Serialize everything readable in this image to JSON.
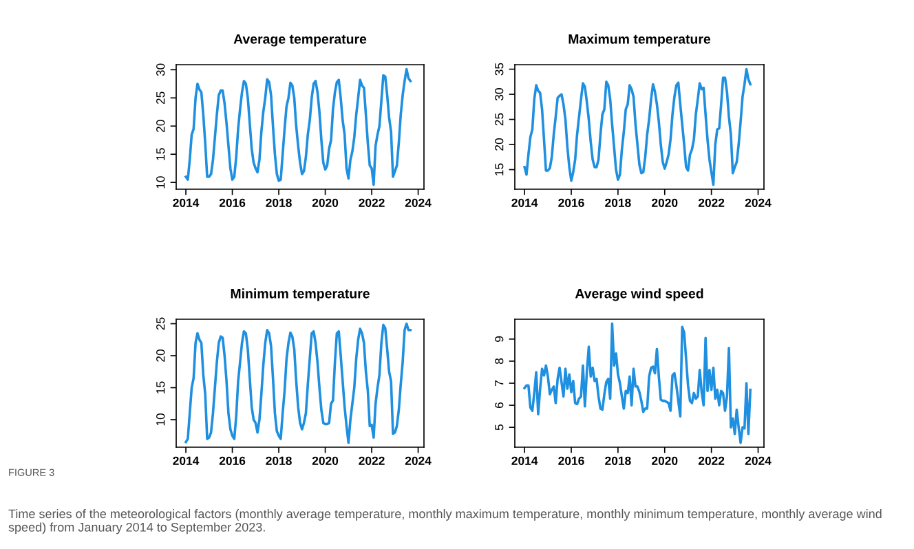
{
  "chart_data": [
    {
      "type": "line",
      "title": "Average temperature",
      "xlim": [
        "2013-08",
        "2024-04"
      ],
      "xticks": [
        "2014",
        "2016",
        "2018",
        "2020",
        "2022",
        "2024"
      ],
      "ylim": [
        8.8,
        30.9
      ],
      "yticks": [
        10,
        15,
        20,
        25,
        30
      ],
      "grid": false,
      "legend": false,
      "marker": "none",
      "line_style": "solid",
      "x": [
        "2014-01",
        "2014-02",
        "2014-03",
        "2014-04",
        "2014-05",
        "2014-06",
        "2014-07",
        "2014-08",
        "2014-09",
        "2014-10",
        "2014-11",
        "2014-12",
        "2015-01",
        "2015-02",
        "2015-03",
        "2015-04",
        "2015-05",
        "2015-06",
        "2015-07",
        "2015-08",
        "2015-09",
        "2015-10",
        "2015-11",
        "2015-12",
        "2016-01",
        "2016-02",
        "2016-03",
        "2016-04",
        "2016-05",
        "2016-06",
        "2016-07",
        "2016-08",
        "2016-09",
        "2016-10",
        "2016-11",
        "2016-12",
        "2017-01",
        "2017-02",
        "2017-03",
        "2017-04",
        "2017-05",
        "2017-06",
        "2017-07",
        "2017-08",
        "2017-09",
        "2017-10",
        "2017-11",
        "2017-12",
        "2018-01",
        "2018-02",
        "2018-03",
        "2018-04",
        "2018-05",
        "2018-06",
        "2018-07",
        "2018-08",
        "2018-09",
        "2018-10",
        "2018-11",
        "2018-12",
        "2019-01",
        "2019-02",
        "2019-03",
        "2019-04",
        "2019-05",
        "2019-06",
        "2019-07",
        "2019-08",
        "2019-09",
        "2019-10",
        "2019-11",
        "2019-12",
        "2020-01",
        "2020-02",
        "2020-03",
        "2020-04",
        "2020-05",
        "2020-06",
        "2020-07",
        "2020-08",
        "2020-09",
        "2020-10",
        "2020-11",
        "2020-12",
        "2021-01",
        "2021-02",
        "2021-03",
        "2021-04",
        "2021-05",
        "2021-06",
        "2021-07",
        "2021-08",
        "2021-09",
        "2021-10",
        "2021-11",
        "2021-12",
        "2022-01",
        "2022-02",
        "2022-03",
        "2022-04",
        "2022-05",
        "2022-06",
        "2022-07",
        "2022-08",
        "2022-09",
        "2022-10",
        "2022-11",
        "2022-12",
        "2023-01",
        "2023-02",
        "2023-03",
        "2023-04",
        "2023-05",
        "2023-06",
        "2023-07",
        "2023-08",
        "2023-09"
      ],
      "series": [
        {
          "color": "#1f8fe0",
          "values": [
            11,
            10.5,
            14,
            18.5,
            19.5,
            25,
            27.5,
            26.5,
            26,
            22,
            17,
            11,
            11,
            11.5,
            14,
            18,
            22,
            25.5,
            26.3,
            26.3,
            24,
            20.5,
            16.5,
            12.5,
            10.5,
            11,
            14.5,
            19.5,
            23,
            26,
            28,
            27.5,
            25,
            20.5,
            16,
            13.5,
            12.5,
            11.8,
            14,
            19,
            22.5,
            25,
            28.3,
            27.8,
            25.5,
            20,
            15,
            11.5,
            10.3,
            10.5,
            15,
            19.5,
            23.5,
            25,
            27.7,
            27.2,
            25,
            20,
            16.5,
            13.5,
            11.5,
            12,
            14.5,
            18.5,
            21,
            25,
            27.5,
            28,
            26,
            22.5,
            17.5,
            13.5,
            12.3,
            13,
            16,
            17.5,
            23,
            26,
            27.8,
            28.2,
            25,
            21,
            18.5,
            12.5,
            10.7,
            14,
            15.5,
            18,
            22,
            25,
            28.2,
            27.2,
            26.8,
            22,
            17,
            13,
            12.5,
            9.6,
            16.5,
            18.5,
            20,
            24.5,
            29,
            28.8,
            25.5,
            21.5,
            19,
            11,
            12,
            13,
            17,
            22,
            25.5,
            28,
            30.1,
            28.5,
            28
          ]
        }
      ]
    },
    {
      "type": "line",
      "title": "Maximum temperature",
      "xlim": [
        "2013-08",
        "2024-04"
      ],
      "xticks": [
        "2014",
        "2016",
        "2018",
        "2020",
        "2022",
        "2024"
      ],
      "ylim": [
        11.1,
        35.9
      ],
      "yticks": [
        15,
        20,
        25,
        30,
        35
      ],
      "grid": false,
      "legend": false,
      "marker": "none",
      "line_style": "solid",
      "x": [
        "2014-01",
        "2014-02",
        "2014-03",
        "2014-04",
        "2014-05",
        "2014-06",
        "2014-07",
        "2014-08",
        "2014-09",
        "2014-10",
        "2014-11",
        "2014-12",
        "2015-01",
        "2015-02",
        "2015-03",
        "2015-04",
        "2015-05",
        "2015-06",
        "2015-07",
        "2015-08",
        "2015-09",
        "2015-10",
        "2015-11",
        "2015-12",
        "2016-01",
        "2016-02",
        "2016-03",
        "2016-04",
        "2016-05",
        "2016-06",
        "2016-07",
        "2016-08",
        "2016-09",
        "2016-10",
        "2016-11",
        "2016-12",
        "2017-01",
        "2017-02",
        "2017-03",
        "2017-04",
        "2017-05",
        "2017-06",
        "2017-07",
        "2017-08",
        "2017-09",
        "2017-10",
        "2017-11",
        "2017-12",
        "2018-01",
        "2018-02",
        "2018-03",
        "2018-04",
        "2018-05",
        "2018-06",
        "2018-07",
        "2018-08",
        "2018-09",
        "2018-10",
        "2018-11",
        "2018-12",
        "2019-01",
        "2019-02",
        "2019-03",
        "2019-04",
        "2019-05",
        "2019-06",
        "2019-07",
        "2019-08",
        "2019-09",
        "2019-10",
        "2019-11",
        "2019-12",
        "2020-01",
        "2020-02",
        "2020-03",
        "2020-04",
        "2020-05",
        "2020-06",
        "2020-07",
        "2020-08",
        "2020-09",
        "2020-10",
        "2020-11",
        "2020-12",
        "2021-01",
        "2021-02",
        "2021-03",
        "2021-04",
        "2021-05",
        "2021-06",
        "2021-07",
        "2021-08",
        "2021-09",
        "2021-10",
        "2021-11",
        "2021-12",
        "2022-01",
        "2022-02",
        "2022-03",
        "2022-04",
        "2022-05",
        "2022-06",
        "2022-07",
        "2022-08",
        "2022-09",
        "2022-10",
        "2022-11",
        "2022-12",
        "2023-01",
        "2023-02",
        "2023-03",
        "2023-04",
        "2023-05",
        "2023-06",
        "2023-07",
        "2023-08",
        "2023-09"
      ],
      "series": [
        {
          "color": "#1f8fe0",
          "values": [
            15.5,
            14,
            18,
            21.5,
            23,
            29,
            31.8,
            30.7,
            30.3,
            27,
            21,
            14.8,
            14.8,
            15.3,
            17.5,
            22,
            25.5,
            29.3,
            29.7,
            30,
            28,
            25,
            19.5,
            15.5,
            12.8,
            14.5,
            17,
            22,
            25.5,
            29,
            32.2,
            31.5,
            28.5,
            25,
            20.5,
            17,
            15.5,
            15.5,
            17,
            22,
            26,
            27,
            32.5,
            31.8,
            29,
            24,
            19.5,
            15,
            13,
            14,
            19,
            22.5,
            27,
            28,
            31.8,
            31,
            29.5,
            24,
            20,
            16,
            14.3,
            14.5,
            17.5,
            22,
            25,
            29,
            32,
            30.5,
            28,
            24.5,
            20,
            16.5,
            15.2,
            16.5,
            18,
            21,
            26,
            29.5,
            31.8,
            32.3,
            28,
            24,
            20,
            15.5,
            14.8,
            18,
            19,
            21,
            26,
            29,
            32.2,
            31,
            31.3,
            26,
            21,
            17,
            14.5,
            12,
            20,
            23,
            23.2,
            28,
            33.3,
            33.3,
            30.5,
            25.5,
            22,
            14.3,
            15.5,
            16.5,
            20,
            24.5,
            29.5,
            32,
            35,
            33,
            32
          ]
        }
      ]
    },
    {
      "type": "line",
      "title": "Minimum temperature",
      "xlim": [
        "2013-08",
        "2024-04"
      ],
      "xticks": [
        "2014",
        "2016",
        "2018",
        "2020",
        "2022",
        "2024"
      ],
      "ylim": [
        5.7,
        25.7
      ],
      "yticks": [
        10,
        15,
        20,
        25
      ],
      "grid": false,
      "legend": false,
      "marker": "none",
      "line_style": "solid",
      "x": [
        "2014-01",
        "2014-02",
        "2014-03",
        "2014-04",
        "2014-05",
        "2014-06",
        "2014-07",
        "2014-08",
        "2014-09",
        "2014-10",
        "2014-11",
        "2014-12",
        "2015-01",
        "2015-02",
        "2015-03",
        "2015-04",
        "2015-05",
        "2015-06",
        "2015-07",
        "2015-08",
        "2015-09",
        "2015-10",
        "2015-11",
        "2015-12",
        "2016-01",
        "2016-02",
        "2016-03",
        "2016-04",
        "2016-05",
        "2016-06",
        "2016-07",
        "2016-08",
        "2016-09",
        "2016-10",
        "2016-11",
        "2016-12",
        "2017-01",
        "2017-02",
        "2017-03",
        "2017-04",
        "2017-05",
        "2017-06",
        "2017-07",
        "2017-08",
        "2017-09",
        "2017-10",
        "2017-11",
        "2017-12",
        "2018-01",
        "2018-02",
        "2018-03",
        "2018-04",
        "2018-05",
        "2018-06",
        "2018-07",
        "2018-08",
        "2018-09",
        "2018-10",
        "2018-11",
        "2018-12",
        "2019-01",
        "2019-02",
        "2019-03",
        "2019-04",
        "2019-05",
        "2019-06",
        "2019-07",
        "2019-08",
        "2019-09",
        "2019-10",
        "2019-11",
        "2019-12",
        "2020-01",
        "2020-02",
        "2020-03",
        "2020-04",
        "2020-05",
        "2020-06",
        "2020-07",
        "2020-08",
        "2020-09",
        "2020-10",
        "2020-11",
        "2020-12",
        "2021-01",
        "2021-02",
        "2021-03",
        "2021-04",
        "2021-05",
        "2021-06",
        "2021-07",
        "2021-08",
        "2021-09",
        "2021-10",
        "2021-11",
        "2021-12",
        "2022-01",
        "2022-02",
        "2022-03",
        "2022-04",
        "2022-05",
        "2022-06",
        "2022-07",
        "2022-08",
        "2022-09",
        "2022-10",
        "2022-11",
        "2022-12",
        "2023-01",
        "2023-02",
        "2023-03",
        "2023-04",
        "2023-05",
        "2023-06",
        "2023-07",
        "2023-08",
        "2023-09"
      ],
      "series": [
        {
          "color": "#1f8fe0",
          "values": [
            6.5,
            7,
            11,
            15,
            16.5,
            22,
            23.5,
            22.5,
            22,
            17,
            14,
            7,
            7.2,
            8,
            11,
            15,
            19,
            22,
            23,
            22.8,
            20,
            16,
            11,
            8.5,
            7.5,
            7,
            10.5,
            16,
            19,
            22,
            23.8,
            23.5,
            21,
            16.5,
            12,
            10,
            9.5,
            8,
            10,
            14,
            18.5,
            22,
            24,
            23.5,
            21.5,
            16.5,
            11,
            8.2,
            7.5,
            7,
            11,
            14.5,
            19.5,
            22,
            23.6,
            23,
            21,
            16,
            12,
            9.5,
            8.5,
            9.5,
            11,
            15.5,
            19.5,
            23.5,
            23.8,
            22,
            19,
            15,
            11.5,
            9.5,
            9.3,
            9.3,
            9.5,
            12.5,
            13,
            19,
            23.5,
            23.8,
            20,
            16,
            12,
            9,
            6.4,
            10,
            12.5,
            15,
            19.5,
            22.5,
            24.2,
            23.5,
            22,
            17.5,
            14.5,
            9,
            9.2,
            7.2,
            12.5,
            15,
            17,
            22,
            24.8,
            24.3,
            21,
            17.5,
            16,
            7.8,
            8,
            9,
            11.5,
            15.5,
            19,
            24,
            25,
            24,
            24
          ]
        }
      ]
    },
    {
      "type": "line",
      "title": "Average wind speed",
      "xlim": [
        "2013-08",
        "2024-04"
      ],
      "xticks": [
        "2014",
        "2016",
        "2018",
        "2020",
        "2022",
        "2024"
      ],
      "ylim": [
        4.1,
        9.9
      ],
      "yticks": [
        5,
        6,
        7,
        8,
        9
      ],
      "grid": false,
      "legend": false,
      "marker": "none",
      "line_style": "solid",
      "x": [
        "2014-01",
        "2014-02",
        "2014-03",
        "2014-04",
        "2014-05",
        "2014-06",
        "2014-07",
        "2014-08",
        "2014-09",
        "2014-10",
        "2014-11",
        "2014-12",
        "2015-01",
        "2015-02",
        "2015-03",
        "2015-04",
        "2015-05",
        "2015-06",
        "2015-07",
        "2015-08",
        "2015-09",
        "2015-10",
        "2015-11",
        "2015-12",
        "2016-01",
        "2016-02",
        "2016-03",
        "2016-04",
        "2016-05",
        "2016-06",
        "2016-07",
        "2016-08",
        "2016-09",
        "2016-10",
        "2016-11",
        "2016-12",
        "2017-01",
        "2017-02",
        "2017-03",
        "2017-04",
        "2017-05",
        "2017-06",
        "2017-07",
        "2017-08",
        "2017-09",
        "2017-10",
        "2017-11",
        "2017-12",
        "2018-01",
        "2018-02",
        "2018-03",
        "2018-04",
        "2018-05",
        "2018-06",
        "2018-07",
        "2018-08",
        "2018-09",
        "2018-10",
        "2018-11",
        "2018-12",
        "2019-01",
        "2019-02",
        "2019-03",
        "2019-04",
        "2019-05",
        "2019-06",
        "2019-07",
        "2019-08",
        "2019-09",
        "2019-10",
        "2019-11",
        "2019-12",
        "2020-01",
        "2020-02",
        "2020-03",
        "2020-04",
        "2020-05",
        "2020-06",
        "2020-07",
        "2020-08",
        "2020-09",
        "2020-10",
        "2020-11",
        "2020-12",
        "2021-01",
        "2021-02",
        "2021-03",
        "2021-04",
        "2021-05",
        "2021-06",
        "2021-07",
        "2021-08",
        "2021-09",
        "2021-10",
        "2021-11",
        "2021-12",
        "2022-01",
        "2022-02",
        "2022-03",
        "2022-04",
        "2022-05",
        "2022-06",
        "2022-07",
        "2022-08",
        "2022-09",
        "2022-10",
        "2022-11",
        "2022-12",
        "2023-01",
        "2023-02",
        "2023-03",
        "2023-04",
        "2023-05",
        "2023-06",
        "2023-07",
        "2023-08",
        "2023-09"
      ],
      "series": [
        {
          "color": "#1f8fe0",
          "values": [
            6.78,
            6.9,
            6.9,
            5.9,
            5.75,
            6.55,
            7.5,
            5.6,
            6.75,
            7.65,
            7.35,
            7.8,
            7.3,
            6.5,
            6.7,
            6.85,
            6.1,
            7.2,
            7.7,
            7.05,
            6.4,
            7.65,
            6.75,
            7.4,
            6.6,
            7.1,
            6.1,
            6.05,
            6.3,
            6.4,
            7.8,
            5.95,
            7.5,
            8.65,
            7.3,
            7.7,
            7.1,
            7.2,
            6.4,
            5.85,
            5.8,
            6.5,
            7.05,
            7.2,
            6.3,
            9.7,
            7.8,
            8.35,
            7.4,
            7.0,
            6.4,
            5.85,
            6.65,
            6.55,
            7.3,
            6.0,
            7.65,
            6.85,
            6.85,
            6.6,
            6.2,
            5.7,
            5.85,
            5.85,
            7.3,
            7.7,
            7.75,
            7.45,
            8.55,
            7.3,
            6.25,
            6.2,
            6.2,
            6.15,
            6.1,
            5.75,
            7.35,
            7.45,
            6.9,
            6.2,
            5.5,
            9.55,
            9.3,
            8.1,
            6.9,
            6.2,
            6.1,
            6.55,
            6.3,
            6.4,
            7.6,
            6.6,
            6.0,
            9.05,
            6.65,
            7.6,
            6.7,
            7.7,
            6.3,
            6.7,
            6.0,
            6.65,
            6.55,
            5.75,
            6.4,
            8.6,
            5.0,
            5.4,
            4.7,
            5.8,
            5.0,
            4.3,
            5.0,
            4.95,
            7.0,
            4.7,
            6.7
          ]
        }
      ],
      "annotations": [
        "FIGURE 3",
        "Time series of the meteorological factors (monthly average temperature, monthly maximum temperature, monthly minimum temperature, monthly average wind speed) from January 2014 to September 2023."
      ]
    }
  ]
}
